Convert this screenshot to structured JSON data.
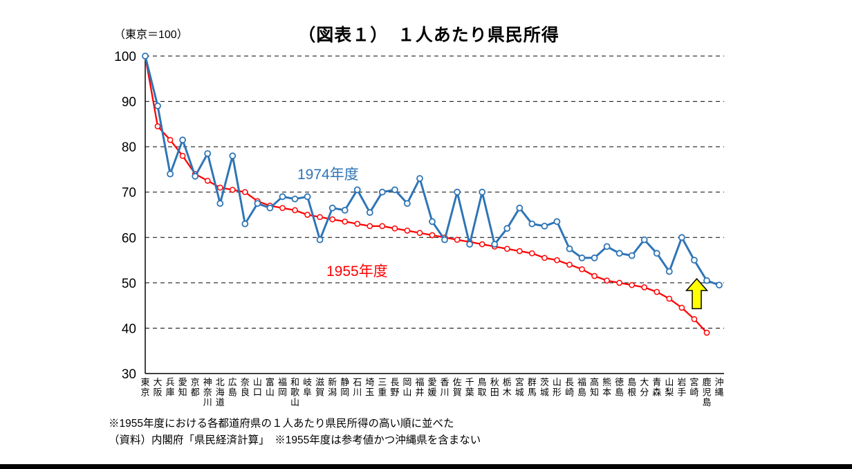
{
  "page": {
    "index_note": "（東京＝100）",
    "title": "（図表１）　１人あたり県民所得",
    "footnote_1": "※1955年度における各都道府県の１人あたり県民所得の高い順に並べた",
    "footnote_2": "（資料）内閣府「県民経済計算」　※1955年度は参考値かつ沖縄県を含まない"
  },
  "chart_data": {
    "type": "line",
    "title": "（図表１）　１人あたり県民所得",
    "index_note": "（東京＝100）",
    "xlabel": "",
    "ylabel": "",
    "ylim": [
      30,
      100
    ],
    "yticks": [
      30,
      40,
      50,
      60,
      70,
      80,
      90,
      100
    ],
    "grid": "horizontal-dashed",
    "legend": "inline-labels",
    "sort_note": "1955年度の１人あたり県民所得の高い順",
    "categories": [
      "東京",
      "大阪",
      "兵庫",
      "愛知",
      "京都",
      "神奈川",
      "北海道",
      "広島",
      "奈良",
      "山口",
      "富山",
      "福岡",
      "和歌山",
      "岐阜",
      "滋賀",
      "新潟",
      "静岡",
      "石川",
      "埼玉",
      "三重",
      "長野",
      "岡山",
      "福井",
      "愛媛",
      "香川",
      "佐賀",
      "千葉",
      "鳥取",
      "秋田",
      "栃木",
      "宮城",
      "群馬",
      "茨城",
      "山形",
      "長崎",
      "福島",
      "高知",
      "熊本",
      "徳島",
      "島根",
      "大分",
      "青森",
      "山梨",
      "岩手",
      "宮崎",
      "鹿児島",
      "沖縄"
    ],
    "series": [
      {
        "name": "1974年度",
        "color": "#2E75B6",
        "values": [
          100,
          89,
          74,
          81.5,
          73.5,
          78.5,
          67.5,
          78,
          63,
          67.5,
          66.5,
          69,
          68.5,
          69,
          59.5,
          66.5,
          66,
          70.5,
          65.5,
          70,
          70.5,
          67.5,
          73,
          63.5,
          59.5,
          70,
          58.5,
          70,
          58.5,
          62,
          66.5,
          63,
          62.5,
          63.5,
          57.5,
          55.5,
          55.5,
          58,
          56.5,
          56,
          59.5,
          56.5,
          52.5,
          60,
          55,
          50.5,
          49.5
        ]
      },
      {
        "name": "1955年度",
        "color": "#FF0000",
        "values": [
          100,
          84.5,
          81.5,
          78,
          74,
          72.5,
          71,
          70.5,
          70,
          68,
          67,
          66.5,
          66,
          65,
          64.5,
          64,
          63.5,
          63,
          62.5,
          62.5,
          62,
          61.5,
          61,
          60.5,
          60,
          59.5,
          59,
          58.5,
          58,
          57.5,
          57,
          56.5,
          55.5,
          55,
          54,
          53,
          51.5,
          50.5,
          50,
          49.5,
          49,
          48,
          46.5,
          44.5,
          42,
          39
        ]
      }
    ],
    "annotation": {
      "shape": "block-up-arrow",
      "color": "#FFFF00",
      "x_index": 44.2,
      "tip_value": 50.9,
      "base_value": 44.3
    }
  }
}
